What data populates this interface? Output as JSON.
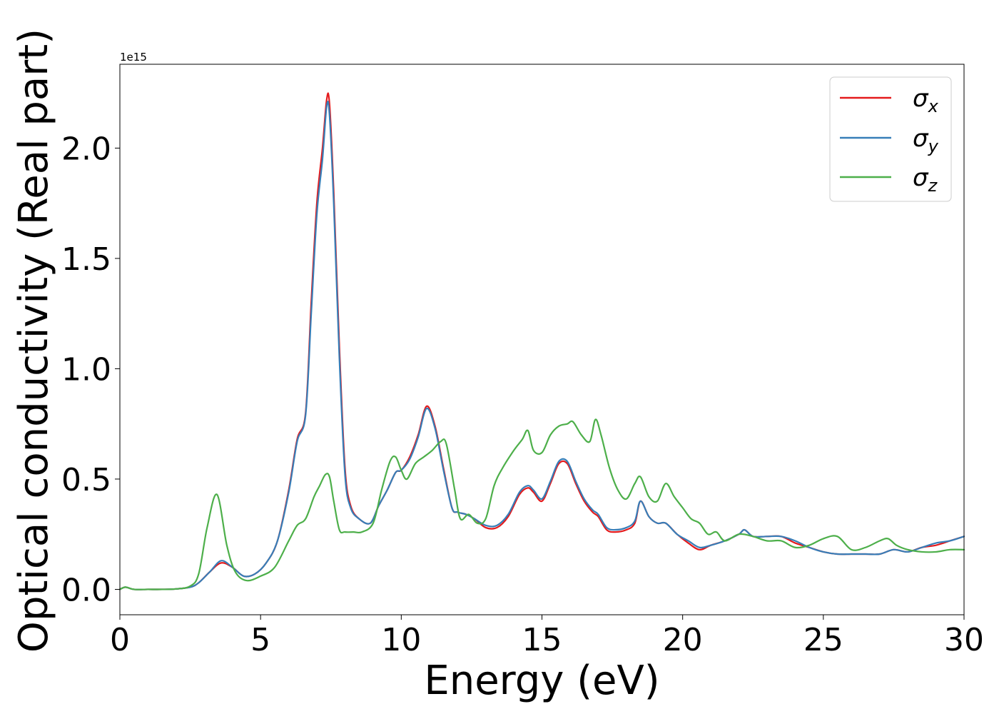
{
  "chart_data": {
    "type": "line",
    "title": "",
    "xlabel": "Energy (eV)",
    "ylabel": "Optical conductivity (Real part)",
    "y_offset_text": "1e15",
    "xlim": [
      0,
      30
    ],
    "ylim": [
      -0.115,
      2.38
    ],
    "x_ticks": [
      0,
      5,
      10,
      15,
      20,
      25,
      30
    ],
    "x_tick_labels": [
      "0",
      "5",
      "10",
      "15",
      "20",
      "25",
      "30"
    ],
    "y_ticks": [
      0.0,
      0.5,
      1.0,
      1.5,
      2.0
    ],
    "y_tick_labels": [
      "0.0",
      "0.5",
      "1.0",
      "1.5",
      "2.0"
    ],
    "grid": false,
    "legend": {
      "position": "top-right",
      "entries": [
        "σx",
        "σy",
        "σz"
      ]
    },
    "series": [
      {
        "name": "σx",
        "color": "#e41a1c",
        "x": [
          0,
          0.2,
          0.5,
          1,
          1.5,
          2,
          2.5,
          2.8,
          3.2,
          3.6,
          4,
          4.4,
          4.8,
          5.2,
          5.6,
          6,
          6.3,
          6.6,
          6.8,
          7,
          7.2,
          7.35,
          7.45,
          7.6,
          7.8,
          8,
          8.2,
          8.5,
          8.9,
          9.2,
          9.5,
          9.8,
          10,
          10.3,
          10.6,
          10.9,
          11.2,
          11.5,
          11.8,
          12,
          12.3,
          12.6,
          13,
          13.4,
          13.8,
          14.2,
          14.5,
          14.7,
          15,
          15.3,
          15.6,
          15.9,
          16.2,
          16.5,
          16.8,
          17,
          17.3,
          17.6,
          18,
          18.3,
          18.5,
          18.8,
          19.1,
          19.4,
          19.8,
          20.2,
          20.6,
          21,
          21.5,
          22,
          22.2,
          22.5,
          23,
          23.5,
          24,
          24.5,
          25,
          25.5,
          26,
          26.5,
          27,
          27.5,
          28,
          28.5,
          29,
          29.5,
          30
        ],
        "values": [
          0.0,
          0.01,
          0.0,
          0.0,
          0.0,
          0.002,
          0.01,
          0.03,
          0.08,
          0.12,
          0.1,
          0.06,
          0.07,
          0.12,
          0.22,
          0.45,
          0.68,
          0.8,
          1.3,
          1.75,
          2.0,
          2.22,
          2.2,
          1.8,
          1.1,
          0.55,
          0.38,
          0.32,
          0.3,
          0.38,
          0.45,
          0.53,
          0.54,
          0.6,
          0.7,
          0.83,
          0.74,
          0.55,
          0.37,
          0.35,
          0.34,
          0.32,
          0.28,
          0.28,
          0.33,
          0.43,
          0.46,
          0.44,
          0.4,
          0.48,
          0.57,
          0.57,
          0.48,
          0.4,
          0.35,
          0.33,
          0.27,
          0.26,
          0.27,
          0.3,
          0.4,
          0.33,
          0.3,
          0.3,
          0.25,
          0.21,
          0.18,
          0.2,
          0.22,
          0.25,
          0.27,
          0.24,
          0.24,
          0.24,
          0.21,
          0.19,
          0.17,
          0.16,
          0.16,
          0.16,
          0.16,
          0.18,
          0.17,
          0.19,
          0.2,
          0.22,
          0.24
        ]
      },
      {
        "name": "σy",
        "color": "#377eb8",
        "x": [
          0,
          0.2,
          0.5,
          1,
          1.5,
          2,
          2.5,
          2.8,
          3.2,
          3.6,
          4,
          4.4,
          4.8,
          5.2,
          5.6,
          6,
          6.3,
          6.6,
          6.8,
          7,
          7.2,
          7.35,
          7.45,
          7.6,
          7.8,
          8,
          8.2,
          8.5,
          8.9,
          9.2,
          9.5,
          9.8,
          10,
          10.3,
          10.6,
          10.9,
          11.2,
          11.5,
          11.8,
          12,
          12.3,
          12.6,
          13,
          13.4,
          13.8,
          14.2,
          14.5,
          14.7,
          15,
          15.3,
          15.6,
          15.9,
          16.2,
          16.5,
          16.8,
          17,
          17.3,
          17.6,
          18,
          18.3,
          18.5,
          18.8,
          19.1,
          19.4,
          19.8,
          20.2,
          20.6,
          21,
          21.5,
          22,
          22.2,
          22.5,
          23,
          23.5,
          24,
          24.5,
          25,
          25.5,
          26,
          26.5,
          27,
          27.5,
          28,
          28.5,
          29,
          29.5,
          30
        ],
        "values": [
          0.0,
          0.01,
          0.0,
          0.0,
          0.0,
          0.002,
          0.01,
          0.03,
          0.08,
          0.13,
          0.1,
          0.06,
          0.07,
          0.12,
          0.22,
          0.44,
          0.67,
          0.79,
          1.25,
          1.7,
          1.95,
          2.19,
          2.15,
          1.75,
          1.05,
          0.52,
          0.37,
          0.32,
          0.3,
          0.38,
          0.45,
          0.53,
          0.54,
          0.59,
          0.69,
          0.82,
          0.73,
          0.54,
          0.37,
          0.35,
          0.34,
          0.32,
          0.29,
          0.29,
          0.34,
          0.44,
          0.47,
          0.45,
          0.41,
          0.49,
          0.58,
          0.58,
          0.49,
          0.41,
          0.36,
          0.34,
          0.28,
          0.27,
          0.28,
          0.31,
          0.4,
          0.33,
          0.3,
          0.3,
          0.25,
          0.22,
          0.19,
          0.2,
          0.22,
          0.25,
          0.27,
          0.24,
          0.24,
          0.24,
          0.22,
          0.19,
          0.17,
          0.16,
          0.16,
          0.16,
          0.16,
          0.18,
          0.17,
          0.19,
          0.21,
          0.22,
          0.24
        ]
      },
      {
        "name": "σz",
        "color": "#4daf4a",
        "x": [
          0,
          0.2,
          0.5,
          1,
          1.5,
          2,
          2.5,
          2.8,
          3.1,
          3.45,
          3.8,
          4.1,
          4.5,
          5,
          5.5,
          6,
          6.3,
          6.6,
          6.9,
          7.1,
          7.3,
          7.45,
          7.6,
          7.8,
          8,
          8.3,
          8.6,
          9,
          9.3,
          9.6,
          9.8,
          10,
          10.2,
          10.5,
          10.8,
          11.1,
          11.4,
          11.6,
          11.9,
          12.1,
          12.4,
          12.7,
          13,
          13.3,
          13.6,
          14,
          14.3,
          14.5,
          14.7,
          15,
          15.3,
          15.6,
          15.9,
          16.1,
          16.4,
          16.7,
          16.9,
          17.1,
          17.4,
          17.7,
          18,
          18.3,
          18.5,
          18.8,
          19.1,
          19.4,
          19.7,
          20,
          20.3,
          20.6,
          20.9,
          21.2,
          21.5,
          22,
          22.5,
          23,
          23.5,
          24,
          24.5,
          25,
          25.5,
          26,
          26.5,
          27,
          27.3,
          27.6,
          28,
          28.5,
          29,
          29.5,
          30
        ],
        "values": [
          0.0,
          0.01,
          0.0,
          0.0,
          0.0,
          0.002,
          0.015,
          0.07,
          0.28,
          0.43,
          0.2,
          0.08,
          0.04,
          0.06,
          0.1,
          0.22,
          0.29,
          0.32,
          0.42,
          0.47,
          0.52,
          0.51,
          0.4,
          0.27,
          0.26,
          0.26,
          0.26,
          0.3,
          0.45,
          0.58,
          0.6,
          0.54,
          0.5,
          0.57,
          0.6,
          0.63,
          0.67,
          0.66,
          0.45,
          0.32,
          0.34,
          0.3,
          0.32,
          0.47,
          0.55,
          0.63,
          0.68,
          0.72,
          0.63,
          0.62,
          0.7,
          0.74,
          0.75,
          0.76,
          0.7,
          0.67,
          0.77,
          0.7,
          0.55,
          0.45,
          0.41,
          0.48,
          0.51,
          0.42,
          0.4,
          0.48,
          0.42,
          0.37,
          0.32,
          0.3,
          0.25,
          0.26,
          0.22,
          0.25,
          0.24,
          0.22,
          0.22,
          0.19,
          0.2,
          0.23,
          0.24,
          0.18,
          0.19,
          0.22,
          0.23,
          0.2,
          0.18,
          0.17,
          0.17,
          0.18,
          0.18
        ]
      }
    ]
  }
}
